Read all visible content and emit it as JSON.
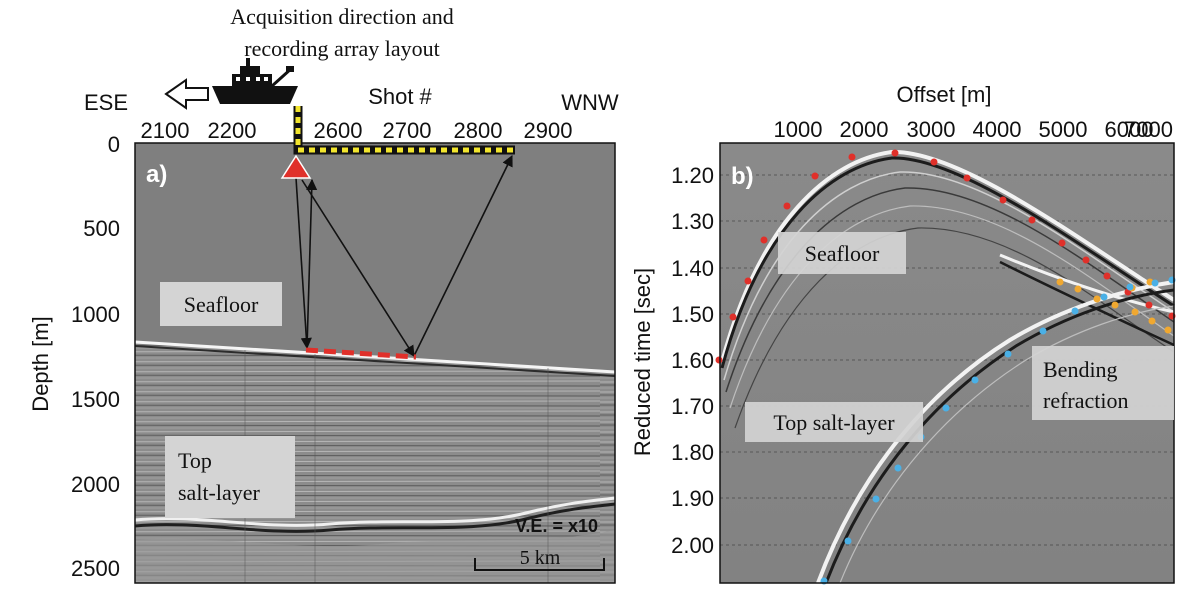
{
  "panel_a": {
    "caption_line1": "Acquisition direction and",
    "caption_line2": "recording array layout",
    "dir_left": "ESE",
    "dir_right": "WNW",
    "top_axis_title": "Shot #",
    "top_ticks": [
      "2100",
      "2200",
      "2600",
      "2700",
      "2800",
      "2900"
    ],
    "y_axis_title": "Depth [m]",
    "y_ticks": [
      "0",
      "500",
      "1000",
      "1500",
      "2000",
      "2500"
    ],
    "panel_label": "a)",
    "label_seafloor": "Seafloor",
    "label_top_salt_1": "Top",
    "label_top_salt_2": "salt-layer",
    "ve_text": "V.E. = x10",
    "scale_text": "5 km"
  },
  "panel_b": {
    "x_axis_title": "Offset [m]",
    "x_ticks": [
      "1000",
      "2000",
      "3000",
      "4000",
      "5000",
      "6000",
      "7000"
    ],
    "y_axis_title": "Reduced time [sec]",
    "y_ticks": [
      "1.20",
      "1.30",
      "1.40",
      "1.50",
      "1.60",
      "1.70",
      "1.80",
      "1.90",
      "2.00"
    ],
    "panel_label": "b)",
    "label_seafloor": "Seafloor",
    "label_top_salt": "Top salt-layer",
    "label_bending_1": "Bending",
    "label_bending_2": "refraction"
  },
  "colors": {
    "panel_gray": "#7f7f7f",
    "red": "#e0302a",
    "yellow": "#f2e52d",
    "blue": "#4ab0e6",
    "orange": "#f0a830",
    "label_box": "#d4d4d4"
  },
  "icons": [
    "ship-icon",
    "arrow-left-icon",
    "source-triangle-icon"
  ]
}
